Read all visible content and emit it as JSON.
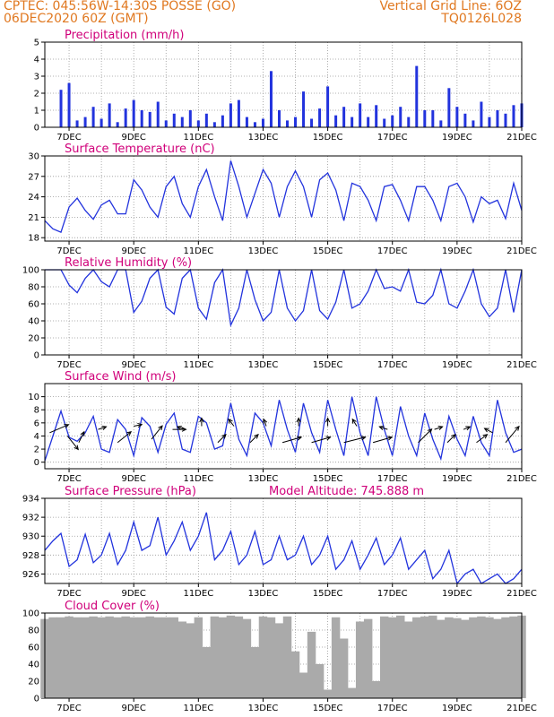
{
  "header": {
    "line1": "CPTEC:  045:56W-14:30S  POSSE (GO)",
    "line2": "06DEC2020 60Z (GMT)",
    "right1": "Vertical Grid Line: 6OZ",
    "right2": "TQ0126L028"
  },
  "colors": {
    "header": "#e07820",
    "panel_title": "#d0007a",
    "series": "#2233dd",
    "cloud": "#aaaaaa",
    "grid": "#999999"
  },
  "chart_data": [
    {
      "type": "bar",
      "title": "Precipitation (mm/h)",
      "ylim": [
        0,
        5
      ],
      "yticks": [
        "0",
        "1",
        "2",
        "3",
        "4",
        "5"
      ],
      "x_tick_labels": [
        "7DEC",
        "9DEC",
        "11DEC",
        "13DEC",
        "15DEC",
        "17DEC",
        "19DEC",
        "21DEC"
      ],
      "x_days": [
        6.75,
        7,
        7.25,
        7.5,
        7.75,
        8,
        8.25,
        8.5,
        8.75,
        9,
        9.25,
        9.5,
        9.75,
        10,
        10.25,
        10.5,
        10.75,
        11,
        11.25,
        11.5,
        11.75,
        12,
        12.25,
        12.5,
        12.75,
        13,
        13.25,
        13.5,
        13.75,
        14,
        14.25,
        14.5,
        14.75,
        15,
        15.25,
        15.5,
        15.75,
        16,
        16.25,
        16.5,
        16.75,
        17,
        17.25,
        17.5,
        17.75,
        18,
        18.25,
        18.5,
        18.75,
        19,
        19.25,
        19.5,
        19.75,
        20,
        20.25,
        20.5,
        20.75,
        21
      ],
      "values": [
        2.2,
        2.6,
        0.4,
        0.6,
        1.2,
        0.5,
        1.4,
        0.3,
        1.1,
        1.6,
        1.0,
        0.9,
        1.5,
        0.4,
        0.8,
        0.6,
        1.0,
        0.4,
        0.8,
        0.3,
        0.7,
        1.4,
        1.6,
        0.6,
        0.3,
        0.5,
        3.3,
        1.0,
        0.4,
        0.6,
        2.1,
        0.5,
        1.1,
        2.4,
        0.7,
        1.2,
        0.6,
        1.4,
        0.6,
        1.3,
        0.5,
        0.7,
        1.2,
        0.6,
        3.6,
        1.0,
        1.0,
        0.4,
        2.3,
        1.2,
        0.8,
        0.4,
        1.5,
        0.6,
        1.0,
        0.8,
        1.3,
        1.4
      ]
    },
    {
      "type": "line",
      "title": "Surface Temperature (nC)",
      "ylim": [
        17.5,
        30
      ],
      "yticks": [
        "18",
        "21",
        "24",
        "27",
        "30"
      ],
      "x_tick_labels": [
        "7DEC",
        "9DEC",
        "11DEC",
        "13DEC",
        "15DEC",
        "17DEC",
        "19DEC",
        "21DEC"
      ],
      "x_days": [
        6.25,
        6.5,
        6.75,
        7,
        7.25,
        7.5,
        7.75,
        8,
        8.25,
        8.5,
        8.75,
        9,
        9.25,
        9.5,
        9.75,
        10,
        10.25,
        10.5,
        10.75,
        11,
        11.25,
        11.5,
        11.75,
        12,
        12.25,
        12.5,
        12.75,
        13,
        13.25,
        13.5,
        13.75,
        14,
        14.25,
        14.5,
        14.75,
        15,
        15.25,
        15.5,
        15.75,
        16,
        16.25,
        16.5,
        16.75,
        17,
        17.25,
        17.5,
        17.75,
        18,
        18.25,
        18.5,
        18.75,
        19,
        19.25,
        19.5,
        19.75,
        20,
        20.25,
        20.5,
        20.75,
        21
      ],
      "values": [
        20.5,
        19.3,
        18.8,
        22.5,
        23.8,
        22.0,
        20.7,
        22.8,
        23.5,
        21.5,
        21.5,
        26.5,
        25.0,
        22.5,
        21.0,
        25.5,
        27.0,
        23.0,
        21.0,
        25.5,
        28.0,
        24.0,
        20.5,
        29.3,
        25.5,
        21.0,
        24.5,
        28.0,
        26.0,
        21.0,
        25.5,
        27.8,
        25.5,
        21.0,
        26.5,
        27.5,
        25.0,
        20.5,
        26.0,
        25.5,
        23.5,
        20.5,
        25.5,
        25.8,
        23.5,
        20.5,
        25.5,
        25.5,
        23.5,
        20.5,
        25.5,
        26.0,
        24.0,
        20.3,
        24.0,
        23.0,
        23.5,
        20.8,
        26.0,
        22.0
      ]
    },
    {
      "type": "line",
      "title": "Relative Humidity (%)",
      "ylim": [
        0,
        100
      ],
      "yticks": [
        "0",
        "20",
        "40",
        "60",
        "80",
        "100"
      ],
      "x_tick_labels": [
        "7DEC",
        "9DEC",
        "11DEC",
        "13DEC",
        "15DEC",
        "17DEC",
        "19DEC",
        "21DEC"
      ],
      "x_days": [
        6.25,
        6.5,
        6.75,
        7,
        7.25,
        7.5,
        7.75,
        8,
        8.25,
        8.5,
        8.75,
        9,
        9.25,
        9.5,
        9.75,
        10,
        10.25,
        10.5,
        10.75,
        11,
        11.25,
        11.5,
        11.75,
        12,
        12.25,
        12.5,
        12.75,
        13,
        13.25,
        13.5,
        13.75,
        14,
        14.25,
        14.5,
        14.75,
        15,
        15.25,
        15.5,
        15.75,
        16,
        16.25,
        16.5,
        16.75,
        17,
        17.25,
        17.5,
        17.75,
        18,
        18.25,
        18.5,
        18.75,
        19,
        19.25,
        19.5,
        19.75,
        20,
        20.25,
        20.5,
        20.75,
        21
      ],
      "values": [
        100,
        100,
        100,
        82,
        73,
        90,
        100,
        86,
        80,
        100,
        100,
        50,
        63,
        90,
        100,
        56,
        48,
        90,
        100,
        55,
        42,
        85,
        100,
        35,
        55,
        100,
        65,
        40,
        50,
        100,
        55,
        40,
        52,
        100,
        52,
        42,
        62,
        100,
        55,
        60,
        75,
        100,
        78,
        80,
        75,
        100,
        62,
        60,
        70,
        100,
        60,
        55,
        75,
        100,
        60,
        45,
        55,
        100,
        50,
        100
      ]
    },
    {
      "type": "line",
      "title": "Surface Wind (m/s)",
      "ylim": [
        -1,
        12
      ],
      "yticks": [
        "0",
        "2",
        "4",
        "6",
        "8",
        "10"
      ],
      "x_tick_labels": [
        "7DEC",
        "9DEC",
        "11DEC",
        "13DEC",
        "15DEC",
        "17DEC",
        "19DEC",
        "21DEC"
      ],
      "x_days": [
        6.25,
        6.5,
        6.75,
        7,
        7.25,
        7.5,
        7.75,
        8,
        8.25,
        8.5,
        8.75,
        9,
        9.25,
        9.5,
        9.75,
        10,
        10.25,
        10.5,
        10.75,
        11,
        11.25,
        11.5,
        11.75,
        12,
        12.25,
        12.5,
        12.75,
        13,
        13.25,
        13.5,
        13.75,
        14,
        14.25,
        14.5,
        14.75,
        15,
        15.25,
        15.5,
        15.75,
        16,
        16.25,
        16.5,
        16.75,
        17,
        17.25,
        17.5,
        17.75,
        18,
        18.25,
        18.5,
        18.75,
        19,
        19.25,
        19.5,
        19.75,
        20,
        20.25,
        20.5,
        20.75,
        21
      ],
      "values": [
        0.2,
        4.0,
        7.8,
        3.8,
        3.2,
        4.5,
        7.0,
        2.0,
        1.5,
        6.5,
        5.0,
        1.0,
        6.8,
        5.5,
        1.5,
        5.8,
        7.5,
        2.0,
        1.5,
        7.0,
        6.0,
        2.0,
        2.5,
        9.0,
        3.5,
        1.0,
        7.5,
        6.0,
        2.5,
        9.5,
        5.0,
        1.5,
        9.0,
        4.5,
        1.5,
        9.5,
        5.0,
        1.0,
        10.0,
        4.5,
        1.0,
        10.0,
        5.0,
        1.0,
        8.5,
        4.0,
        1.0,
        7.5,
        3.5,
        0.5,
        7.0,
        3.5,
        1.0,
        7.0,
        3.0,
        1.0,
        9.5,
        4.5,
        1.5,
        2.0
      ]
    },
    {
      "type": "line",
      "title": "Surface Pressure (hPa)",
      "annotation": "Model Altitude: 745.888  m",
      "ylim": [
        925,
        934
      ],
      "yticks": [
        "926",
        "928",
        "930",
        "932",
        "934"
      ],
      "x_tick_labels": [
        "7DEC",
        "9DEC",
        "11DEC",
        "13DEC",
        "15DEC",
        "17DEC",
        "19DEC",
        "21DEC"
      ],
      "x_days": [
        6.25,
        6.5,
        6.75,
        7,
        7.25,
        7.5,
        7.75,
        8,
        8.25,
        8.5,
        8.75,
        9,
        9.25,
        9.5,
        9.75,
        10,
        10.25,
        10.5,
        10.75,
        11,
        11.25,
        11.5,
        11.75,
        12,
        12.25,
        12.5,
        12.75,
        13,
        13.25,
        13.5,
        13.75,
        14,
        14.25,
        14.5,
        14.75,
        15,
        15.25,
        15.5,
        15.75,
        16,
        16.25,
        16.5,
        16.75,
        17,
        17.25,
        17.5,
        17.75,
        18,
        18.25,
        18.5,
        18.75,
        19,
        19.25,
        19.5,
        19.75,
        20,
        20.25,
        20.5,
        20.75,
        21
      ],
      "values": [
        928.5,
        929.5,
        930.3,
        926.8,
        927.5,
        930.2,
        927.2,
        928.0,
        930.3,
        927.0,
        928.5,
        931.5,
        928.5,
        929.0,
        932.0,
        928.0,
        929.5,
        931.5,
        928.5,
        930.0,
        932.5,
        927.5,
        928.5,
        930.5,
        927.0,
        928.0,
        930.5,
        927.0,
        927.5,
        930.0,
        927.5,
        928.0,
        930.0,
        927.0,
        928.0,
        930.0,
        926.5,
        927.5,
        929.5,
        926.5,
        928.0,
        929.8,
        927.0,
        928.0,
        929.8,
        926.5,
        927.5,
        928.5,
        925.5,
        926.5,
        928.5,
        925.0,
        926.0,
        926.5,
        925.0,
        925.5,
        926.0,
        925.0,
        925.5,
        926.5
      ]
    },
    {
      "type": "area",
      "title": "Cloud Cover (%)",
      "ylim": [
        0,
        100
      ],
      "yticks": [
        "0",
        "20",
        "40",
        "60",
        "80",
        "100"
      ],
      "x_tick_labels": [
        "7DEC",
        "9DEC",
        "11DEC",
        "13DEC",
        "15DEC",
        "17DEC",
        "19DEC",
        "21DEC"
      ],
      "x_days": [
        6.25,
        6.5,
        6.75,
        7,
        7.25,
        7.5,
        7.75,
        8,
        8.25,
        8.5,
        8.75,
        9,
        9.25,
        9.5,
        9.75,
        10,
        10.25,
        10.5,
        10.75,
        11,
        11.25,
        11.5,
        11.75,
        12,
        12.25,
        12.5,
        12.75,
        13,
        13.25,
        13.5,
        13.75,
        14,
        14.25,
        14.5,
        14.75,
        15,
        15.25,
        15.5,
        15.75,
        16,
        16.25,
        16.5,
        16.75,
        17,
        17.25,
        17.5,
        17.75,
        18,
        18.25,
        18.5,
        18.75,
        19,
        19.25,
        19.5,
        19.75,
        20,
        20.25,
        20.5,
        20.75,
        21
      ],
      "values": [
        93,
        95,
        95,
        96,
        95,
        95,
        96,
        95,
        96,
        95,
        96,
        95,
        95,
        96,
        95,
        95,
        95,
        90,
        88,
        95,
        60,
        96,
        95,
        97,
        96,
        93,
        60,
        96,
        95,
        88,
        96,
        55,
        30,
        78,
        40,
        10,
        95,
        70,
        12,
        90,
        93,
        20,
        96,
        95,
        97,
        90,
        95,
        96,
        97,
        92,
        95,
        94,
        92,
        95,
        96,
        95,
        93,
        95,
        96,
        97
      ]
    }
  ],
  "wind_vectors": [
    {
      "day": 6.4,
      "speed": 4.5,
      "u": 3.5,
      "v": 1.5
    },
    {
      "day": 6.95,
      "speed": 4.0,
      "u": 2.0,
      "v": -2.5
    },
    {
      "day": 7.3,
      "speed": 3.0,
      "u": 1.0,
      "v": 2.0
    },
    {
      "day": 7.9,
      "speed": 5.0,
      "u": 1.5,
      "v": 0.5
    },
    {
      "day": 8.5,
      "speed": 3.0,
      "u": 2.5,
      "v": 2.0
    },
    {
      "day": 9.0,
      "speed": 5.5,
      "u": 1.5,
      "v": 0.3
    },
    {
      "day": 9.55,
      "speed": 3.5,
      "u": 2.0,
      "v": 2.5
    },
    {
      "day": 10.2,
      "speed": 5.0,
      "u": 2.5,
      "v": 0.0
    },
    {
      "day": 10.6,
      "speed": 5.0,
      "u": -1.5,
      "v": 0.5
    },
    {
      "day": 11.1,
      "speed": 5.5,
      "u": 0.0,
      "v": 1.5
    },
    {
      "day": 11.6,
      "speed": 3.0,
      "u": 1.5,
      "v": 1.5
    },
    {
      "day": 12.1,
      "speed": 5.5,
      "u": -1.0,
      "v": 1.3
    },
    {
      "day": 12.6,
      "speed": 3.0,
      "u": 1.5,
      "v": 1.5
    },
    {
      "day": 13.1,
      "speed": 5.5,
      "u": -0.5,
      "v": 1.3
    },
    {
      "day": 13.6,
      "speed": 3.0,
      "u": 3.5,
      "v": 1.0
    },
    {
      "day": 14.1,
      "speed": 5.5,
      "u": 0.0,
      "v": 1.5
    },
    {
      "day": 14.5,
      "speed": 3.0,
      "u": 3.5,
      "v": 1.0
    },
    {
      "day": 15.0,
      "speed": 5.5,
      "u": 0.0,
      "v": 1.5
    },
    {
      "day": 15.5,
      "speed": 3.0,
      "u": 4.0,
      "v": 1.0
    },
    {
      "day": 15.9,
      "speed": 5.5,
      "u": -0.8,
      "v": 1.3
    },
    {
      "day": 16.4,
      "speed": 3.0,
      "u": 3.5,
      "v": 1.0
    },
    {
      "day": 16.85,
      "speed": 5.0,
      "u": -1.5,
      "v": 0.5
    },
    {
      "day": 17.8,
      "speed": 3.0,
      "u": 2.5,
      "v": 2.5
    },
    {
      "day": 18.3,
      "speed": 5.0,
      "u": 1.5,
      "v": 0.5
    },
    {
      "day": 18.7,
      "speed": 3.0,
      "u": 1.5,
      "v": 1.5
    },
    {
      "day": 19.2,
      "speed": 5.0,
      "u": 1.2,
      "v": 0.5
    },
    {
      "day": 19.6,
      "speed": 3.0,
      "u": 2.0,
      "v": 1.5
    },
    {
      "day": 20.1,
      "speed": 4.5,
      "u": -1.5,
      "v": 0.8
    },
    {
      "day": 20.5,
      "speed": 3.0,
      "u": 2.5,
      "v": 3.0
    }
  ]
}
